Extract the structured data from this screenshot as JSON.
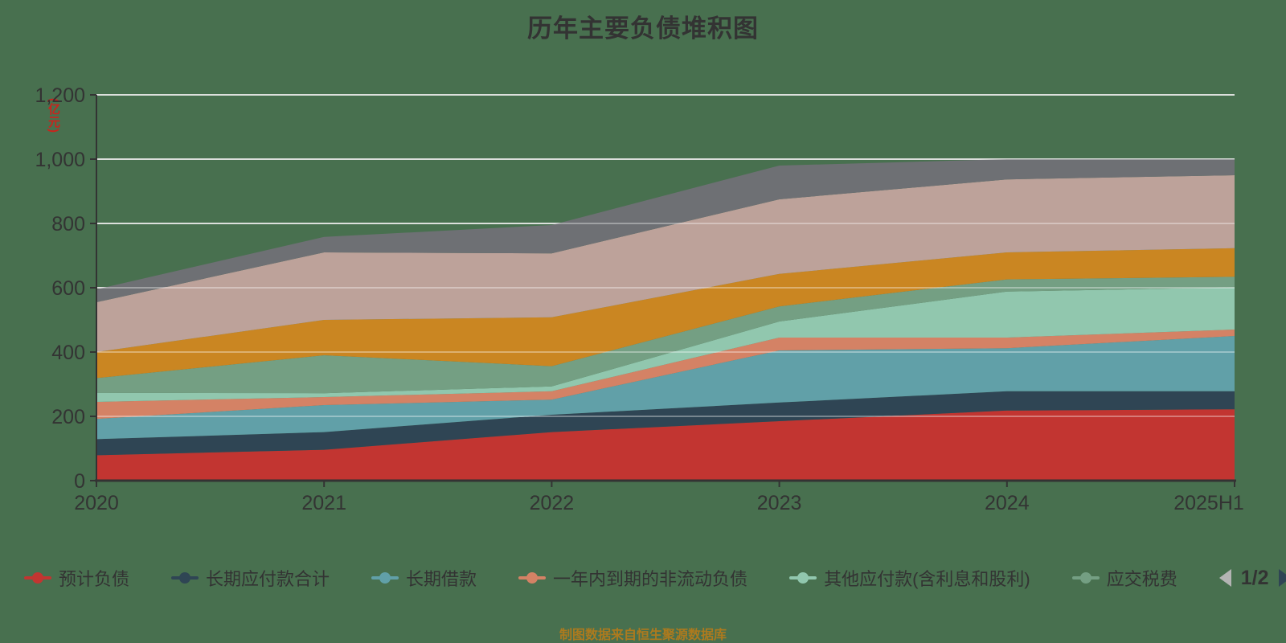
{
  "title": "历年主要负债堆积图",
  "colors": {
    "background": "#48704f",
    "title_text": "#333333",
    "axis": "#333333",
    "gridline": "#c9cec9",
    "y_axis_name_text": "#c9241d",
    "footer_text": "#ad7a1e",
    "legend_text": "#333333",
    "pager_prev_arrow": "#b4b4b4",
    "pager_next_arrow": "#2f4554"
  },
  "legend": {
    "items": [
      {
        "label": "预计负债",
        "color": "#c23531"
      },
      {
        "label": "长期应付款合计",
        "color": "#2f4554"
      },
      {
        "label": "长期借款",
        "color": "#61a0a8"
      },
      {
        "label": "一年内到期的非流动负债",
        "color": "#d48265"
      },
      {
        "label": "其他应付款(含利息和股利)",
        "color": "#91c7ae"
      },
      {
        "label": "应交税费",
        "color": "#749f83"
      }
    ],
    "pagination": {
      "label": "1/2",
      "prev_enabled": false,
      "next_enabled": true
    }
  },
  "footer": {
    "text": "制图数据来自恒生聚源数据库"
  },
  "chart_data": {
    "type": "area",
    "stacked": true,
    "title": "历年主要负债堆积图",
    "ylabel": "(亿元)",
    "xlabel": "",
    "categories": [
      "2020",
      "2021",
      "2022",
      "2023",
      "2024",
      "2025H1"
    ],
    "y_tick_labels": [
      "0",
      "200",
      "400",
      "600",
      "800",
      "1,000",
      "1,200"
    ],
    "ylim": [
      0,
      1200
    ],
    "y_tick_step": 200,
    "grid": true,
    "legend_position": "bottom",
    "series": [
      {
        "name": "预计负债",
        "color": "#c23531",
        "values": [
          79,
          96,
          151,
          185,
          218,
          222
        ]
      },
      {
        "name": "长期应付款合计",
        "color": "#2f4554",
        "values": [
          50,
          55,
          54,
          58,
          60,
          56
        ]
      },
      {
        "name": "长期借款",
        "color": "#61a0a8",
        "values": [
          63,
          84,
          47,
          162,
          134,
          172
        ]
      },
      {
        "name": "一年内到期的非流动负债",
        "color": "#d48265",
        "values": [
          53,
          25,
          26,
          40,
          33,
          20
        ]
      },
      {
        "name": "其他应付款(含利息和股利)",
        "color": "#91c7ae",
        "values": [
          28,
          12,
          15,
          50,
          143,
          131
        ]
      },
      {
        "name": "应交税费",
        "color": "#749f83",
        "values": [
          46,
          118,
          63,
          47,
          38,
          33
        ]
      },
      {
        "name": "",
        "color": "#ca8622",
        "values": [
          81,
          110,
          152,
          101,
          84,
          89
        ]
      },
      {
        "name": "",
        "color": "#bda29a",
        "values": [
          155,
          210,
          199,
          232,
          227,
          227
        ]
      },
      {
        "name": "",
        "color": "#6e7074",
        "values": [
          40,
          48,
          88,
          105,
          63,
          50
        ]
      }
    ]
  }
}
